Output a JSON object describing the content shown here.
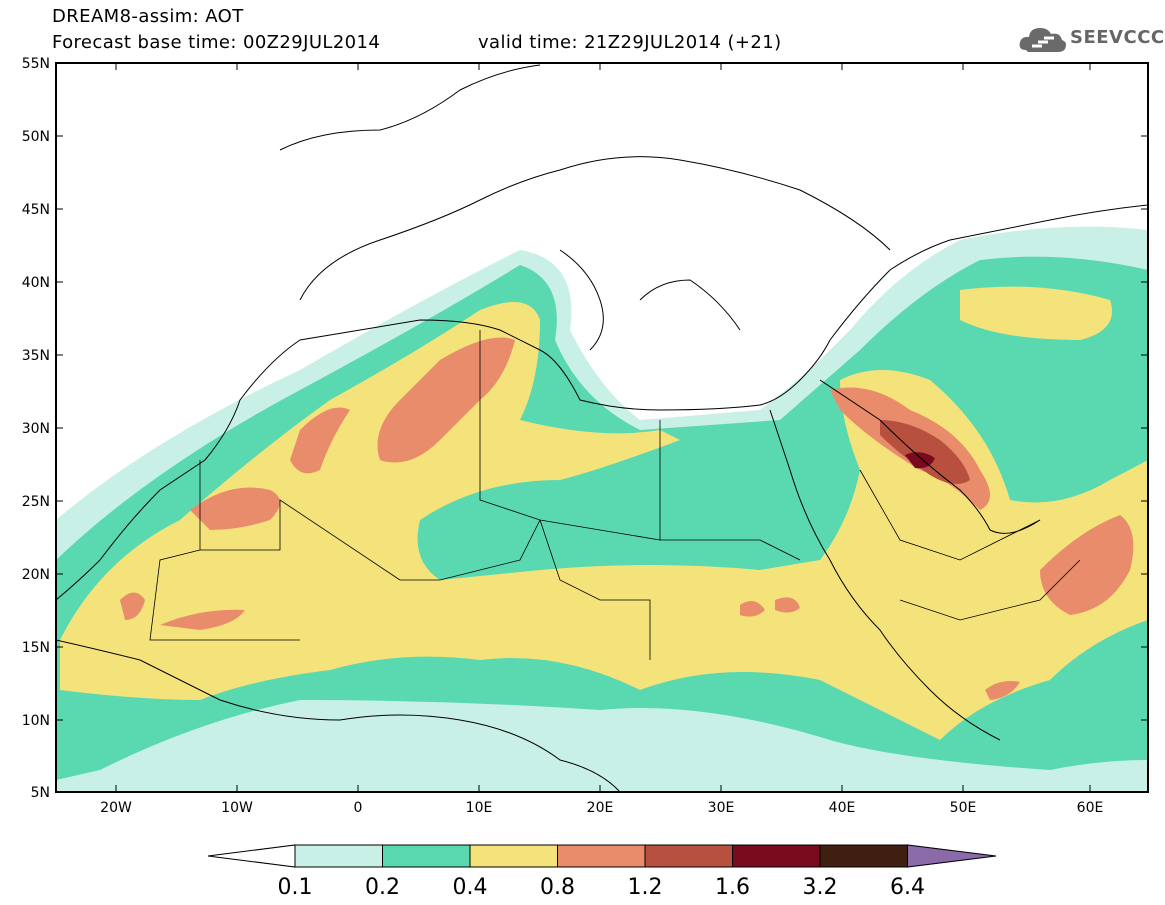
{
  "header": {
    "title_line1": "DREAM8-assim: AOT",
    "title_line2": "Forecast base time: 00Z29JUL2014",
    "valid_time": "valid time: 21Z29JUL2014 (+21)"
  },
  "logo": {
    "text": "SEEVCCC",
    "icon": "cloud-logo-icon"
  },
  "map": {
    "lat_labels": [
      "55N",
      "50N",
      "45N",
      "40N",
      "35N",
      "30N",
      "25N",
      "20N",
      "15N",
      "10N",
      "5N"
    ],
    "lon_labels": [
      "20W",
      "10W",
      "0",
      "10E",
      "20E",
      "30E",
      "40E",
      "50E",
      "60E"
    ]
  },
  "colorbar": {
    "labels": [
      "0.1",
      "0.2",
      "0.4",
      "0.8",
      "1.2",
      "1.6",
      "3.2",
      "6.4"
    ],
    "colors": [
      "#c8f0e6",
      "#5ad8b0",
      "#f4e37a",
      "#e98c6c",
      "#b85040",
      "#7a0a1e",
      "#3f2010",
      "#8b6aaa"
    ]
  }
}
